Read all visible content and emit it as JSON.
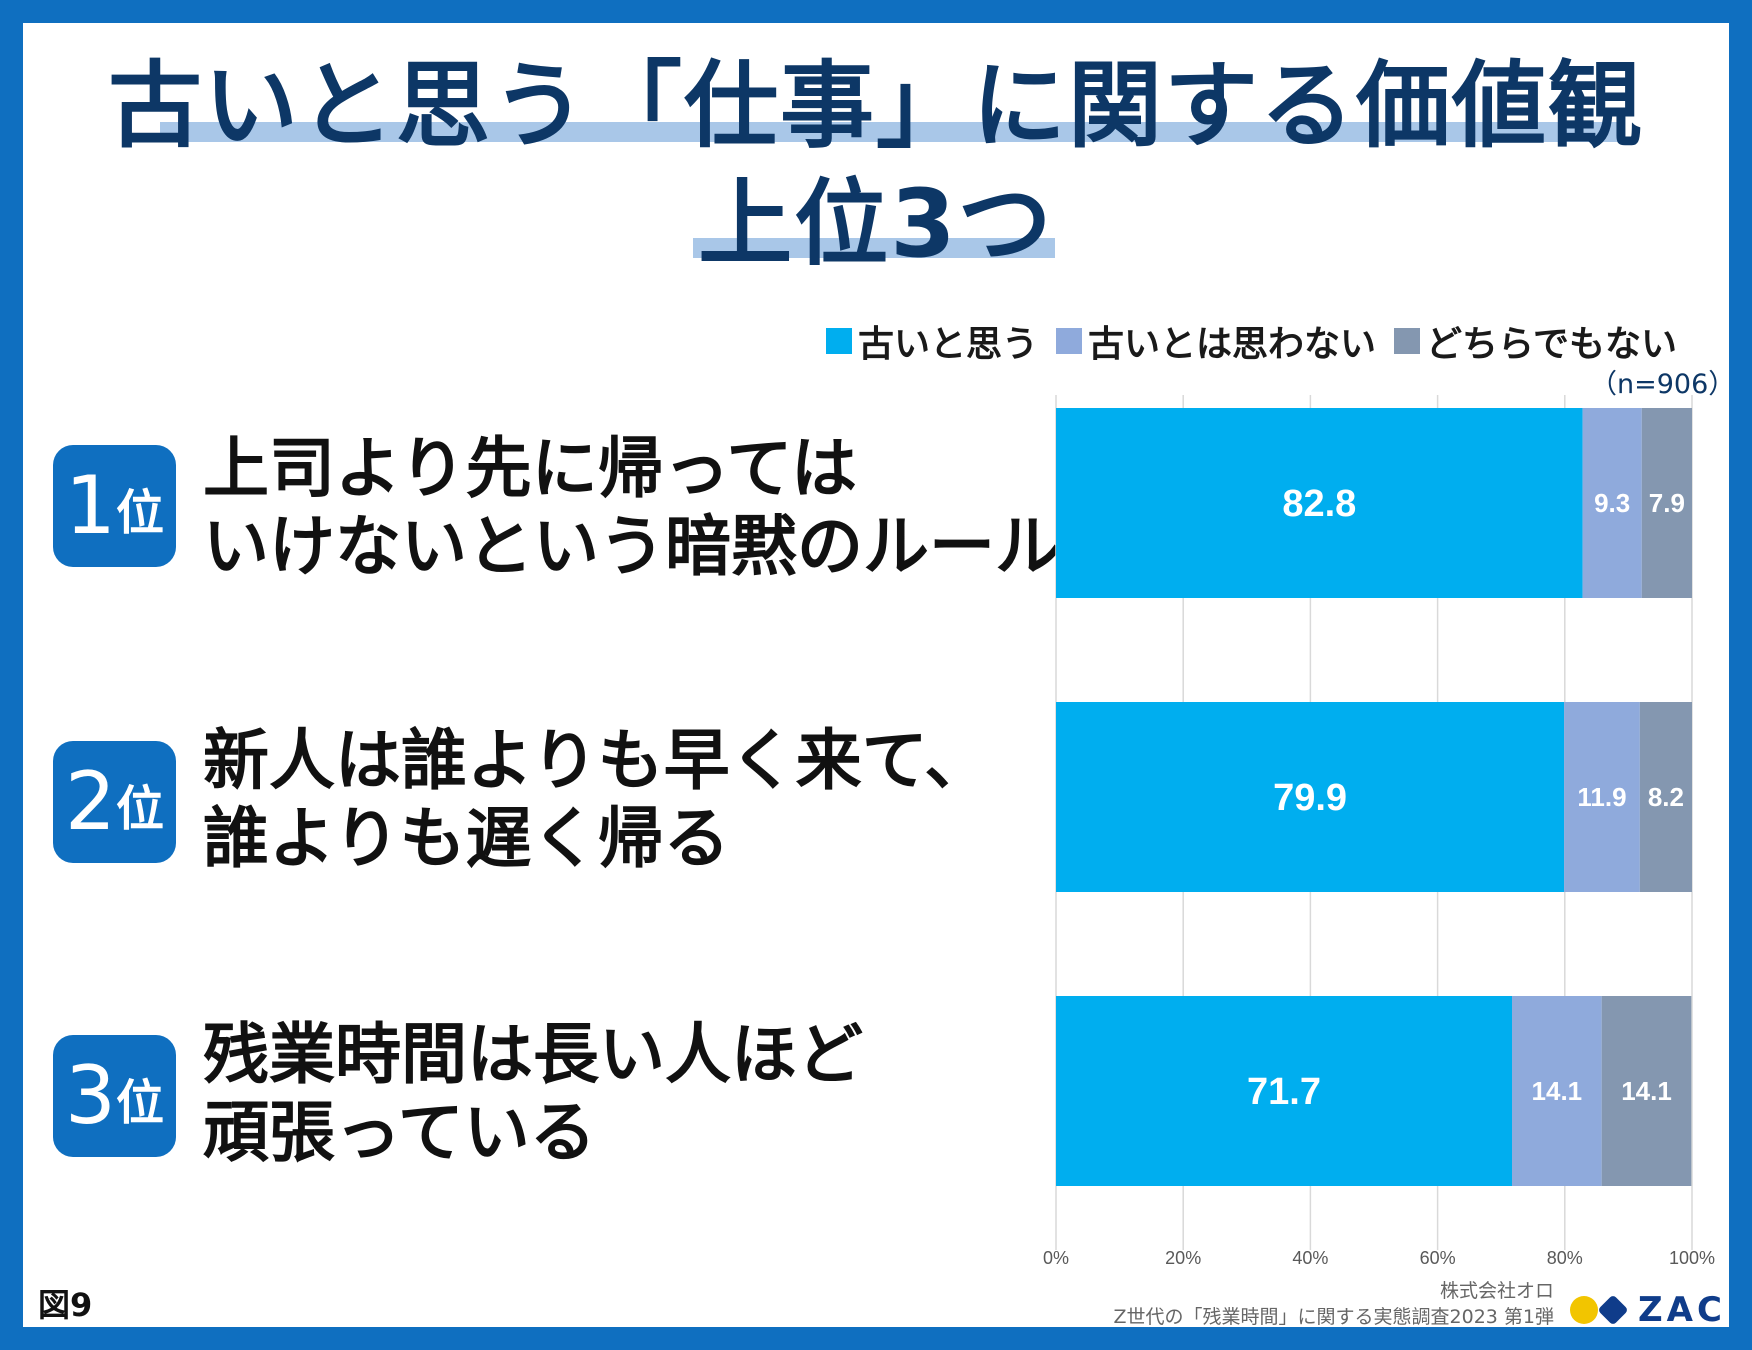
{
  "title": {
    "line1": "古いと思う「仕事」に関する価値観",
    "line2": "上位3つ"
  },
  "legend": [
    {
      "label": "古いと思う",
      "color": "#00aeef"
    },
    {
      "label": "古いとは思わない",
      "color": "#8faadc"
    },
    {
      "label": "どちらでもない",
      "color": "#8497b0"
    }
  ],
  "sample_note": "（n=906）",
  "ranks": [
    {
      "num": "1",
      "suffix": "位",
      "label": "上司より先に帰っては\nいけないという暗黙のルール"
    },
    {
      "num": "2",
      "suffix": "位",
      "label": "新人は誰よりも早く来て、\n誰よりも遅く帰る"
    },
    {
      "num": "3",
      "suffix": "位",
      "label": "残業時間は長い人ほど\n頑張っている"
    }
  ],
  "chart_data": {
    "type": "bar",
    "orientation": "horizontal",
    "stacked": true,
    "percent": true,
    "categories": [
      "上司より先に帰ってはいけないという暗黙のルール",
      "新人は誰よりも早く来て、誰よりも遅く帰る",
      "残業時間は長い人ほど頑張っている"
    ],
    "series": [
      {
        "name": "古いと思う",
        "values": [
          82.8,
          79.9,
          71.7
        ],
        "color": "#00aeef"
      },
      {
        "name": "古いとは思わない",
        "values": [
          9.3,
          11.9,
          14.1
        ],
        "color": "#8faadc"
      },
      {
        "name": "どちらでもない",
        "values": [
          7.9,
          8.2,
          14.1
        ],
        "color": "#8497b0"
      }
    ],
    "xlim": [
      0,
      100
    ],
    "xticks": [
      "0%",
      "20%",
      "40%",
      "60%",
      "80%",
      "100%"
    ],
    "grid": true,
    "legend_position": "top-right"
  },
  "figure_label": "図9",
  "source": {
    "company": "株式会社オロ",
    "survey": "Z世代の「残業時間」に関する実態調査2023 第1弾"
  },
  "logo_text": "ZAC"
}
